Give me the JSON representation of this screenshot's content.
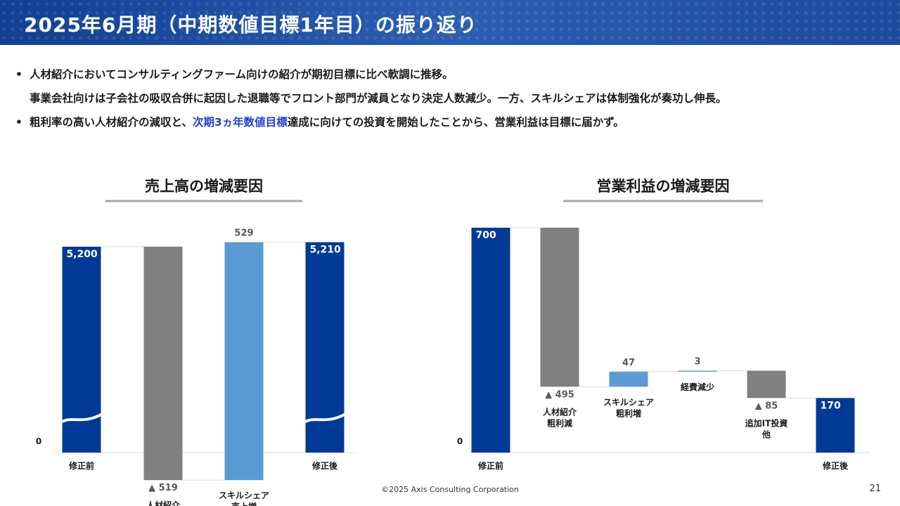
{
  "header": {
    "title": "2025年6月期（中期数値目標1年目）の振り返り"
  },
  "bullets": [
    {
      "line1": "人材紹介においてコンサルティングファーム向けの紹介が期初目標に比べ軟調に推移。",
      "line2": "事業会社向けは子会社の吸収合併に起因した退職等でフロント部門が減員となり決定人数減少。一方、スキルシェアは体制強化が奏功し伸長。"
    },
    {
      "before": "粗利率の高い人材紹介の減収と、",
      "highlight": "次期3ヵ年数値目標",
      "after": "達成に向けての投資を開始したことから、営業利益は目標に届かず。"
    }
  ],
  "colors": {
    "bar_total": "#003a96",
    "bar_decrease": "#808080",
    "bar_increase": "#5b9bd5",
    "highlight": "#1c3fcf"
  },
  "chart_data": [
    {
      "type": "bar",
      "subtype": "waterfall",
      "title": "売上高の増減要因",
      "zero_label": "0",
      "axis_break": true,
      "steps": [
        {
          "label": "修正前",
          "kind": "total",
          "value": 5200,
          "value_label": "5,200"
        },
        {
          "label": "人材紹介\n売上減",
          "kind": "decrease",
          "value": -519,
          "value_label": "▲ 519"
        },
        {
          "label": "スキルシェア\n売上増",
          "kind": "increase",
          "value": 529,
          "value_label": "529"
        },
        {
          "label": "修正後",
          "kind": "total",
          "value": 5210,
          "value_label": "5,210"
        }
      ]
    },
    {
      "type": "bar",
      "subtype": "waterfall",
      "title": "営業利益の増減要因",
      "zero_label": "0",
      "axis_break": false,
      "steps": [
        {
          "label": "修正前",
          "kind": "total",
          "value": 700,
          "value_label": "700"
        },
        {
          "label": "人材紹介\n粗利減",
          "kind": "decrease",
          "value": -495,
          "value_label": "▲ 495"
        },
        {
          "label": "スキルシェア\n粗利増",
          "kind": "increase",
          "value": 47,
          "value_label": "47"
        },
        {
          "label": "経費減少",
          "kind": "increase",
          "value": 3,
          "value_label": "3"
        },
        {
          "label": "追加IT投資\n他",
          "kind": "decrease",
          "value": -85,
          "value_label": "▲ 85"
        },
        {
          "label": "修正後",
          "kind": "total",
          "value": 170,
          "value_label": "170"
        }
      ]
    }
  ],
  "footer": {
    "copyright": "©2025 Axis Consulting Corporation",
    "page_number": "21"
  }
}
